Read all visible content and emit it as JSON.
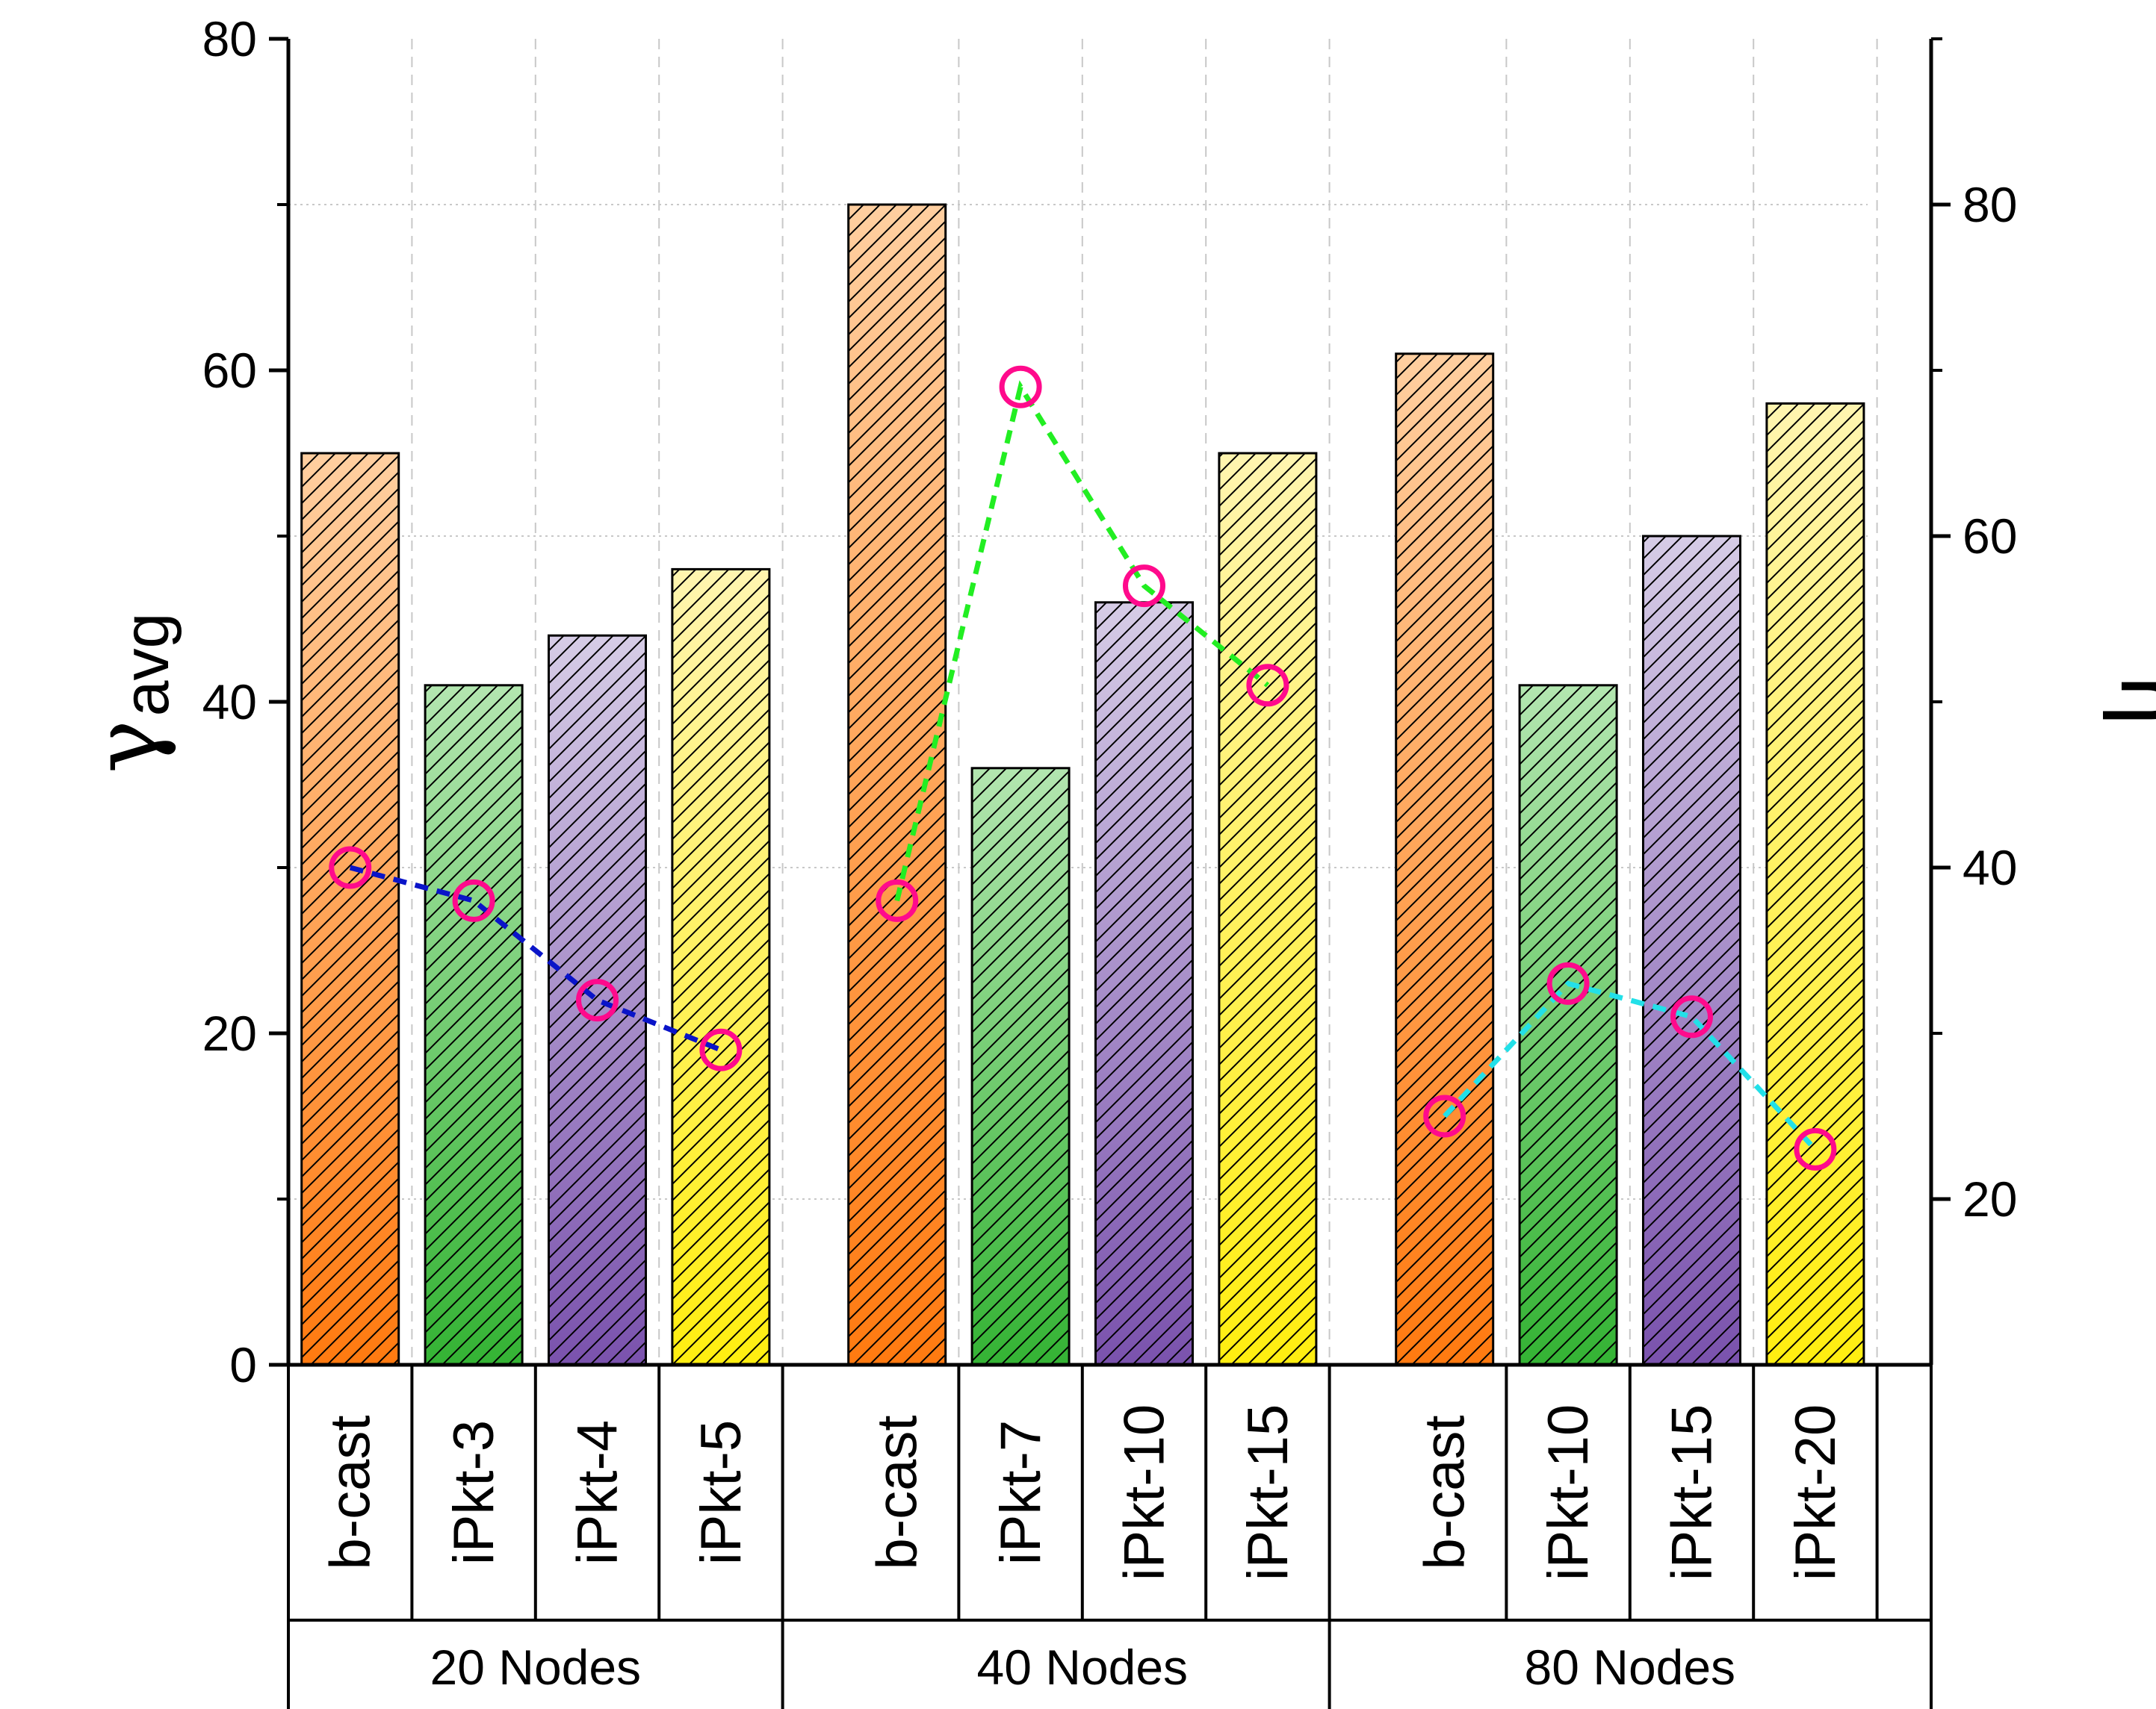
{
  "chart_data": {
    "type": "bar",
    "title": "",
    "ylabel_main": "γ",
    "ylabel_sub": "avg",
    "y2label": "η",
    "ylim": [
      0,
      80
    ],
    "y2lim": [
      10,
      90
    ],
    "yticks": [
      "0",
      "20",
      "40",
      "60",
      "80"
    ],
    "y2ticks": [
      "20",
      "40",
      "60",
      "80"
    ],
    "groups": [
      {
        "label": "20 Nodes",
        "categories": [
          "b-cast",
          "iPkt-3",
          "iPkt-4",
          "iPkt-5"
        ],
        "gamma_avg": [
          55,
          41,
          44,
          48
        ],
        "eta": [
          40,
          38,
          32,
          29
        ],
        "line_color": "#0a14c8"
      },
      {
        "label": "40 Nodes",
        "categories": [
          "b-cast",
          "iPkt-7",
          "iPkt-10",
          "iPkt-15"
        ],
        "gamma_avg": [
          70,
          36,
          46,
          55
        ],
        "eta": [
          38,
          69,
          57,
          51
        ],
        "line_color": "#22ee22"
      },
      {
        "label": "80 Nodes",
        "categories": [
          "b-cast",
          "iPkt-10",
          "iPkt-15",
          "iPkt-20"
        ],
        "gamma_avg": [
          61,
          41,
          50,
          58
        ],
        "eta": [
          25,
          33,
          31,
          23
        ],
        "line_color": "#22e0e8"
      }
    ],
    "colors": {
      "orange_top": "#ffcfa0",
      "orange_bottom": "#ff7a10",
      "green_top": "#b3e6b0",
      "green_bottom": "#34b334",
      "purple_top": "#d6cce6",
      "purple_bottom": "#7a52ad",
      "yellow_top": "#fff5b0",
      "yellow_bottom": "#ffee10",
      "marker": "#ff0a8c"
    }
  }
}
